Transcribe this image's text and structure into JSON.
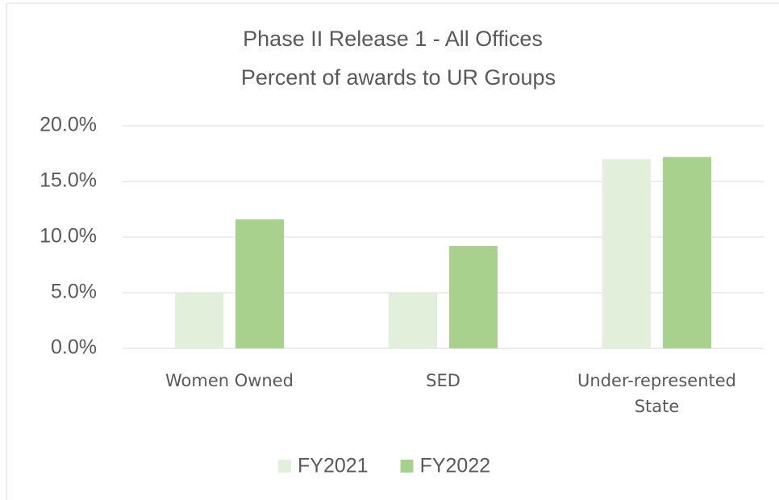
{
  "chart_data": {
    "type": "bar",
    "title": "Phase II Release 1 - All Offices",
    "subtitle": "Percent of awards to UR Groups",
    "categories": [
      "Women Owned",
      "SED",
      "Under-represented State"
    ],
    "series": [
      {
        "name": "FY2021",
        "color": "#e2efda",
        "values": [
          5.0,
          5.0,
          17.0
        ]
      },
      {
        "name": "FY2022",
        "color": "#a9d18e",
        "values": [
          11.6,
          9.2,
          17.2
        ]
      }
    ],
    "ylim": [
      0,
      20
    ],
    "yticks": [
      {
        "value": 0,
        "label": "0.0%"
      },
      {
        "value": 5,
        "label": "5.0%"
      },
      {
        "value": 10,
        "label": "10.0%"
      },
      {
        "value": 15,
        "label": "15.0%"
      },
      {
        "value": 20,
        "label": "20.0%"
      }
    ],
    "grid": true,
    "legend": "bottom"
  }
}
